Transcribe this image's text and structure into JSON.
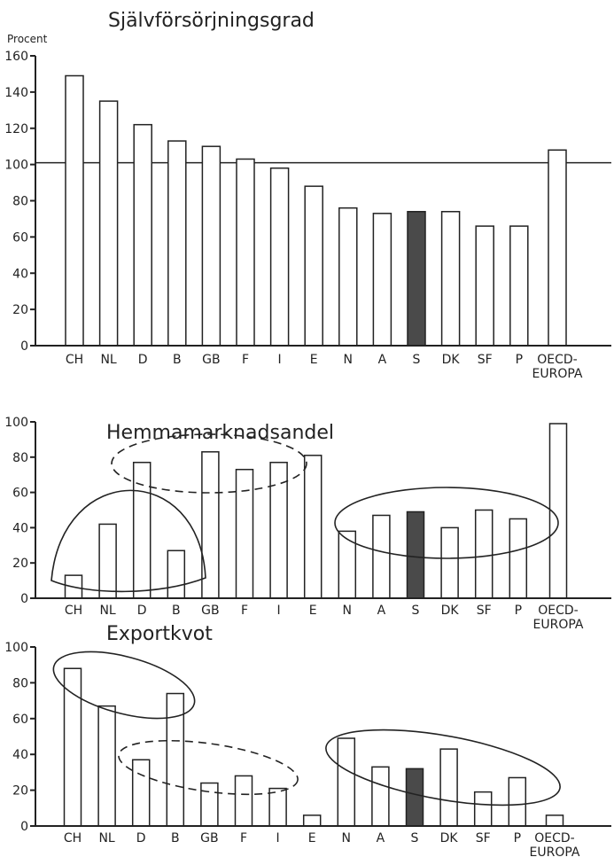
{
  "chart_data": [
    {
      "type": "bar",
      "title": "Självförsörjningsgrad",
      "ylabel": "Procent",
      "categories": [
        "CH",
        "NL",
        "D",
        "B",
        "GB",
        "F",
        "I",
        "E",
        "N",
        "A",
        "S",
        "DK",
        "SF",
        "P",
        "OECD-EUROPA"
      ],
      "category_lines": [
        [
          "CH"
        ],
        [
          "NL"
        ],
        [
          "D"
        ],
        [
          "B"
        ],
        [
          "GB"
        ],
        [
          "F"
        ],
        [
          "I"
        ],
        [
          "E"
        ],
        [
          "N"
        ],
        [
          "A"
        ],
        [
          "S"
        ],
        [
          "DK"
        ],
        [
          "SF"
        ],
        [
          "P"
        ],
        [
          "OECD-",
          "EUROPA"
        ]
      ],
      "values": [
        149,
        135,
        122,
        113,
        110,
        103,
        98,
        88,
        76,
        73,
        74,
        74,
        66,
        66,
        108
      ],
      "highlight": "S",
      "ylim": [
        0,
        160
      ],
      "yticks": [
        "0",
        "20",
        "40",
        "60",
        "80",
        "100",
        "120",
        "140",
        "160"
      ],
      "reference_line": 101
    },
    {
      "type": "bar",
      "title": "Hemmamarknadsandel",
      "categories": [
        "CH",
        "NL",
        "D",
        "B",
        "GB",
        "F",
        "I",
        "E",
        "N",
        "A",
        "S",
        "DK",
        "SF",
        "P",
        "OECD-EUROPA"
      ],
      "category_lines": [
        [
          "CH"
        ],
        [
          "NL"
        ],
        [
          "D"
        ],
        [
          "B"
        ],
        [
          "GB"
        ],
        [
          "F"
        ],
        [
          "I"
        ],
        [
          "E"
        ],
        [
          "N"
        ],
        [
          "A"
        ],
        [
          "S"
        ],
        [
          "DK"
        ],
        [
          "SF"
        ],
        [
          "P"
        ],
        [
          "OECD-",
          "EUROPA"
        ]
      ],
      "values": [
        13,
        42,
        77,
        27,
        83,
        73,
        77,
        81,
        38,
        47,
        49,
        40,
        50,
        45,
        99
      ],
      "highlight": "S",
      "ylim": [
        0,
        100
      ],
      "yticks": [
        "0",
        "20",
        "40",
        "60",
        "80",
        "100"
      ],
      "groupings": [
        {
          "style": "solid",
          "members": [
            "CH",
            "NL",
            "D",
            "B"
          ]
        },
        {
          "style": "dashed",
          "members": [
            "D",
            "GB",
            "F",
            "I"
          ]
        },
        {
          "style": "solid",
          "members": [
            "N",
            "A",
            "S",
            "DK",
            "SF",
            "P"
          ]
        }
      ]
    },
    {
      "type": "bar",
      "title": "Exportkvot",
      "categories": [
        "CH",
        "NL",
        "D",
        "B",
        "GB",
        "F",
        "I",
        "E",
        "N",
        "A",
        "S",
        "DK",
        "SF",
        "P",
        "OECD-EUROPA"
      ],
      "category_lines": [
        [
          "CH"
        ],
        [
          "NL"
        ],
        [
          "D"
        ],
        [
          "B"
        ],
        [
          "GB"
        ],
        [
          "F"
        ],
        [
          "I"
        ],
        [
          "E"
        ],
        [
          "N"
        ],
        [
          "A"
        ],
        [
          "S"
        ],
        [
          "DK"
        ],
        [
          "SF"
        ],
        [
          "P"
        ],
        [
          "OECD-",
          "EUROPA"
        ]
      ],
      "values": [
        88,
        67,
        37,
        74,
        24,
        28,
        21,
        6,
        49,
        33,
        32,
        43,
        19,
        27,
        6
      ],
      "highlight": "S",
      "ylim": [
        0,
        100
      ],
      "yticks": [
        "0",
        "20",
        "40",
        "60",
        "80",
        "100"
      ],
      "groupings": [
        {
          "style": "solid",
          "members": [
            "CH",
            "NL",
            "B"
          ]
        },
        {
          "style": "dashed",
          "members": [
            "D",
            "GB",
            "F",
            "I"
          ]
        },
        {
          "style": "solid",
          "members": [
            "N",
            "A",
            "S",
            "DK",
            "SF",
            "P"
          ]
        }
      ]
    }
  ]
}
